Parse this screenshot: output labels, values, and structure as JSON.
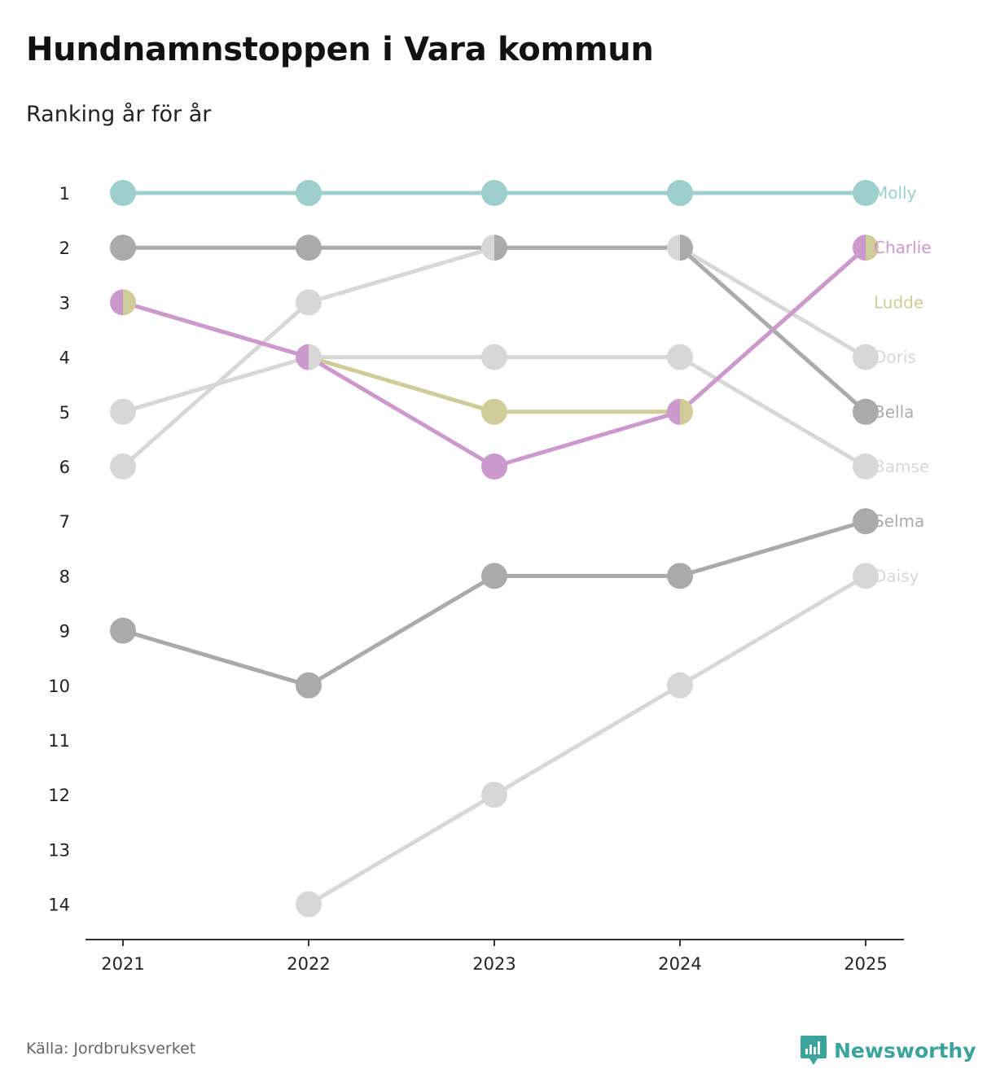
{
  "title": "Hundnamnstoppen i Vara kommun",
  "subtitle": "Ranking år för år",
  "source": "Källa: Jordbruksverket",
  "brand": "Newsworthy",
  "colors": {
    "teal": "#9dcfcd",
    "purple": "#cc99cc",
    "olive": "#cfcc99",
    "gray": "#aaaaaa",
    "light_gray": "#d7d7d7",
    "dark": "#6c6c73",
    "brand": "#3aa39a"
  },
  "chart_data": {
    "type": "line",
    "title": "Hundnamnstoppen i Vara kommun",
    "subtitle": "Ranking år för år",
    "xlabel": "",
    "ylabel": "",
    "x": [
      "2021",
      "2022",
      "2023",
      "2024",
      "2025"
    ],
    "ylim": [
      1,
      14
    ],
    "y_inverted": true,
    "y_ticks": [
      "1",
      "2",
      "3",
      "4",
      "5",
      "6",
      "7",
      "8",
      "9",
      "10",
      "11",
      "12",
      "13",
      "14"
    ],
    "grid": false,
    "series": [
      {
        "name": "Daisy",
        "color": "#d7d7d7",
        "values": [
          null,
          14,
          12,
          10,
          8
        ]
      },
      {
        "name": "Bamse",
        "color": "#d7d7d7",
        "values": [
          5,
          4,
          4,
          4,
          6
        ]
      },
      {
        "name": "Doris",
        "color": "#d7d7d7",
        "values": [
          6,
          3,
          2,
          2,
          4
        ]
      },
      {
        "name": "Selma",
        "color": "#aaaaaa",
        "values": [
          9,
          10,
          8,
          8,
          7
        ]
      },
      {
        "name": "Bella",
        "color": "#aaaaaa",
        "values": [
          2,
          2,
          2,
          2,
          5
        ]
      },
      {
        "name": "Ludde",
        "color": "#cfcc99",
        "values": [
          3,
          4,
          5,
          5,
          2
        ]
      },
      {
        "name": "Charlie",
        "color": "#cc99cc",
        "values": [
          3,
          4,
          6,
          5,
          2
        ]
      },
      {
        "name": "Molly",
        "color": "#9dcfcd",
        "values": [
          1,
          1,
          1,
          1,
          1
        ]
      }
    ],
    "end_labels": [
      {
        "name": "Molly",
        "rank": 1,
        "color": "#9dcfcd"
      },
      {
        "name": "Charlie",
        "rank": 2,
        "color": "#cc99cc"
      },
      {
        "name": "Ludde",
        "rank": 3,
        "color": "#cfcc99"
      },
      {
        "name": "Doris",
        "rank": 4,
        "color": "#d7d7d7"
      },
      {
        "name": "Bella",
        "rank": 5,
        "color": "#aaaaaa"
      },
      {
        "name": "Bamse",
        "rank": 6,
        "color": "#d7d7d7"
      },
      {
        "name": "Selma",
        "rank": 7,
        "color": "#aaaaaa"
      },
      {
        "name": "Daisy",
        "rank": 8,
        "color": "#d7d7d7"
      }
    ]
  }
}
